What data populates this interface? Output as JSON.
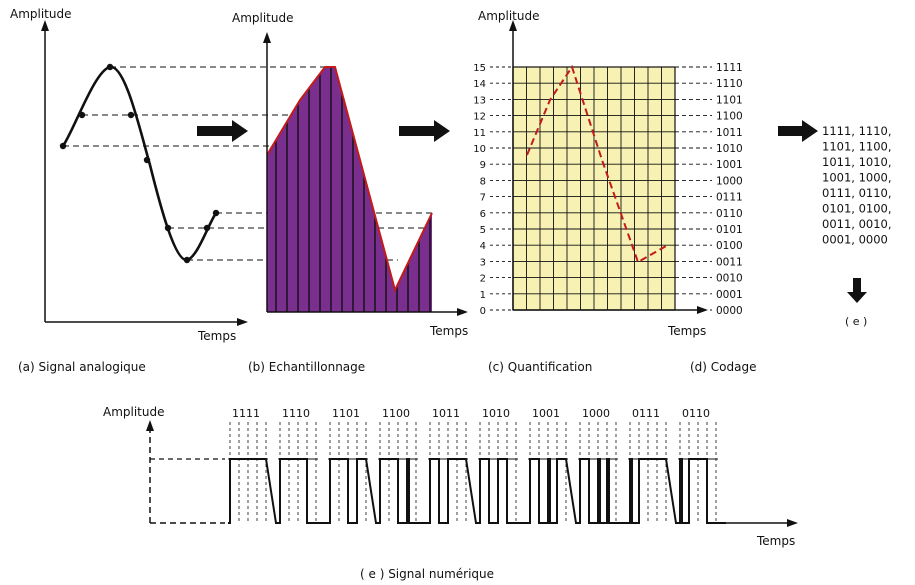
{
  "panels": {
    "a": {
      "ylabel": "Amplitude",
      "xlabel": "Temps",
      "caption": "(a) Signal analogique"
    },
    "b": {
      "ylabel": "Amplitude",
      "xlabel": "Temps",
      "caption": "(b) Echantillonnage"
    },
    "c": {
      "ylabel": "Amplitude",
      "xlabel": "Temps",
      "caption": "(c) Quantification"
    },
    "d": {
      "caption": "(d) Codage"
    },
    "e_list": {
      "label": "( e )"
    },
    "e": {
      "ylabel": "Amplitude",
      "xlabel": "Temps",
      "caption": "( e ) Signal numérique"
    }
  },
  "levels": [
    "0",
    "1",
    "2",
    "3",
    "4",
    "5",
    "6",
    "7",
    "8",
    "9",
    "10",
    "11",
    "12",
    "13",
    "14",
    "15"
  ],
  "codes": [
    "0000",
    "0001",
    "0010",
    "0011",
    "0100",
    "0101",
    "0110",
    "0111",
    "1000",
    "1001",
    "1010",
    "1011",
    "1100",
    "1101",
    "1110",
    "1111"
  ],
  "code_list": [
    "1111, 1110,",
    "1101, 1100,",
    "1011, 1010,",
    "1001, 1000,",
    "0111, 0110,",
    "0101, 0100,",
    "0011, 0010,",
    "0001, 0000"
  ],
  "digital_words": [
    "1111",
    "1110",
    "1101",
    "1100",
    "1011",
    "1010",
    "1001",
    "1000",
    "0111",
    "0110"
  ],
  "colors": {
    "fill_purple": "#7a2e8e",
    "stroke_red": "#c21b1b",
    "grid_yellow": "#f7f2b3",
    "ink": "#111111"
  }
}
